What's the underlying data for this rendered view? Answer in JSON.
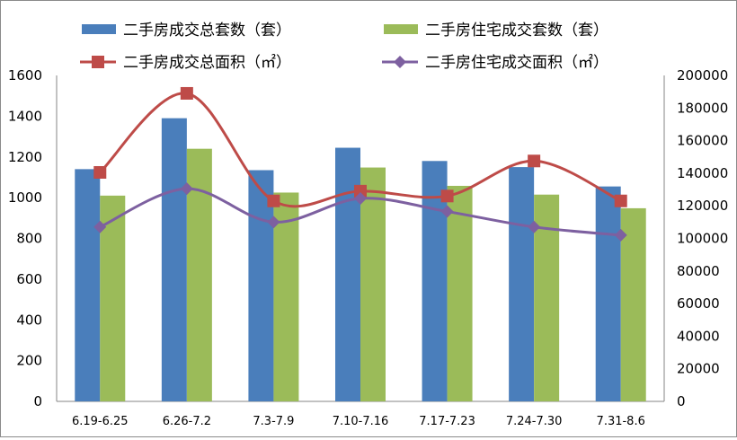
{
  "chart_data": {
    "type": "bar",
    "categories": [
      "6.19-6.25",
      "6.26-7.2",
      "7.3-7.9",
      "7.10-7.16",
      "7.17-7.23",
      "7.24-7.30",
      "7.31-8.6"
    ],
    "series": [
      {
        "name": "二手房成交总套数（套）",
        "kind": "bar",
        "axis": "left",
        "color": "#4a7ebb",
        "values": [
          1140,
          1390,
          1135,
          1245,
          1180,
          1150,
          1055
        ]
      },
      {
        "name": "二手房住宅成交套数（套）",
        "kind": "bar",
        "axis": "left",
        "color": "#9bbb59",
        "values": [
          1010,
          1240,
          1025,
          1148,
          1058,
          1015,
          948
        ]
      },
      {
        "name": "二手房成交总面积（㎡）",
        "kind": "line",
        "axis": "right",
        "color": "#be4b48",
        "marker": "square",
        "values": [
          140500,
          189000,
          123000,
          129000,
          126000,
          147500,
          123000
        ]
      },
      {
        "name": "二手房住宅成交面积（㎡）",
        "kind": "line",
        "axis": "right",
        "color": "#7d60a0",
        "marker": "diamond",
        "values": [
          107000,
          130500,
          110000,
          124500,
          116500,
          107000,
          102000
        ]
      }
    ],
    "ylim_left": [
      0,
      1600
    ],
    "yticks_left": [
      "0",
      "200",
      "400",
      "600",
      "800",
      "1000",
      "1200",
      "1400",
      "1600"
    ],
    "ylim_right": [
      0,
      200000
    ],
    "yticks_right": [
      "0",
      "20000",
      "40000",
      "60000",
      "80000",
      "100000",
      "120000",
      "140000",
      "160000",
      "180000",
      "200000"
    ],
    "grid": false,
    "legend_position": "top",
    "line_style": "smooth"
  }
}
